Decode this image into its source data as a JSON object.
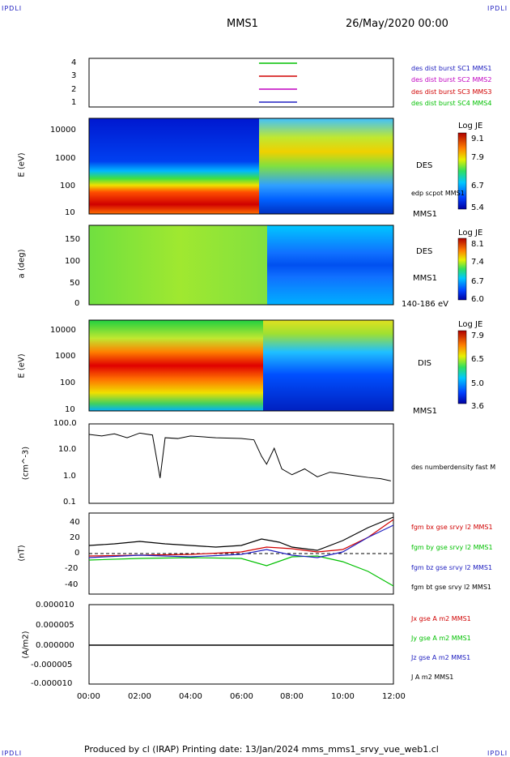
{
  "corner_label": "IPDLI",
  "header": {
    "spacecraft": "MMS1",
    "datetime": "26/May/2020 00:00"
  },
  "footer": "Produced by cl (IRAP)   Printing date: 13/Jan/2024   mms_mms1_srvy_vue_web1.cl",
  "time_axis": {
    "ticks": [
      "00:00",
      "02:00",
      "04:00",
      "06:00",
      "08:00",
      "10:00",
      "12:00"
    ],
    "range_hours": [
      0,
      12
    ]
  },
  "panels": {
    "burst": {
      "yticks": [
        "4",
        "3",
        "2",
        "1"
      ],
      "legend": [
        {
          "text": "des dist burst SC1 MMS1",
          "color": "#2020c0"
        },
        {
          "text": "des dist burst SC2 MMS2",
          "color": "#c000c0"
        },
        {
          "text": "des dist burst SC3 MMS3",
          "color": "#d00000"
        },
        {
          "text": "des dist burst SC4 MMS4",
          "color": "#00c000"
        }
      ]
    },
    "des_energy": {
      "ylabel": "E (eV)",
      "yticks": [
        "10000",
        "1000",
        "100",
        "10"
      ],
      "instrument": "DES",
      "overlay": "edp scpot MMS1",
      "sc": "MMS1",
      "colorbar": {
        "title": "Log JE",
        "ticks": [
          "9.1",
          "7.9",
          "6.7",
          "5.4"
        ]
      }
    },
    "des_pitch": {
      "ylabel": "a (deg)",
      "yticks": [
        "150",
        "100",
        "50",
        "0"
      ],
      "instrument": "DES",
      "sc": "MMS1",
      "energy_range": "140-186 eV",
      "colorbar": {
        "title": "Log JE",
        "ticks": [
          "8.1",
          "7.4",
          "6.7",
          "6.0"
        ]
      }
    },
    "dis_energy": {
      "ylabel": "E (eV)",
      "yticks": [
        "10000",
        "1000",
        "100",
        "10"
      ],
      "instrument": "DIS",
      "sc": "MMS1",
      "colorbar": {
        "title": "Log JE",
        "ticks": [
          "7.9",
          "6.5",
          "5.0",
          "3.6"
        ]
      }
    },
    "density": {
      "ylabel": "(cm^-3)",
      "yticks": [
        "100.0",
        "10.0",
        "1.0",
        "0.1"
      ],
      "legend": "des numberdensity fast M"
    },
    "bfield": {
      "ylabel": "(nT)",
      "yticks": [
        "40",
        "20",
        "0",
        "-20",
        "-40"
      ],
      "legend": [
        {
          "text": "fgm bx gse srvy l2 MMS1",
          "color": "#d00000"
        },
        {
          "text": "fgm by gse srvy l2 MMS1",
          "color": "#00c000"
        },
        {
          "text": "fgm bz gse srvy l2 MMS1",
          "color": "#2020c0"
        },
        {
          "text": "fgm bt gse srvy l2 MMS1",
          "color": "#000000"
        }
      ]
    },
    "current": {
      "ylabel": "(A/m2)",
      "yticks": [
        "0.000010",
        "0.000005",
        "0.000000",
        "-0.000005",
        "-0.000010"
      ],
      "legend": [
        {
          "text": "Jx gse A m2 MMS1",
          "color": "#d00000"
        },
        {
          "text": "Jy gse A m2 MMS1",
          "color": "#00c000"
        },
        {
          "text": "Jz gse A m2 MMS1",
          "color": "#2020c0"
        },
        {
          "text": "J A m2 MMS1",
          "color": "#000000"
        }
      ]
    }
  },
  "chart_data": {
    "type": "line",
    "density": {
      "x_hours": [
        0,
        0.5,
        1,
        1.5,
        2,
        2.5,
        2.8,
        3,
        3.5,
        4,
        5,
        6,
        6.5,
        6.8,
        7,
        7.3,
        7.6,
        8,
        8.5,
        9,
        9.5,
        10,
        10.5,
        11,
        11.5,
        11.9
      ],
      "y_cm3": [
        40,
        35,
        42,
        30,
        45,
        38,
        0.9,
        30,
        28,
        35,
        30,
        28,
        25,
        6,
        3,
        12,
        2,
        1.2,
        2,
        1.0,
        1.5,
        1.3,
        1.1,
        0.95,
        0.85,
        0.7
      ]
    },
    "bt": {
      "x_hours": [
        0,
        1,
        2,
        3,
        4,
        5,
        6,
        6.8,
        7.5,
        8,
        9,
        10,
        11,
        12
      ],
      "y_nT": [
        10,
        12,
        15,
        12,
        10,
        8,
        10,
        18,
        14,
        8,
        4,
        16,
        32,
        45
      ]
    },
    "bx": {
      "x_hours": [
        0,
        2,
        4,
        6,
        7,
        8,
        9,
        10,
        11,
        12
      ],
      "y_nT": [
        -3,
        -2,
        -1,
        2,
        8,
        6,
        2,
        5,
        20,
        42
      ]
    },
    "by": {
      "x_hours": [
        0,
        2,
        4,
        6,
        7,
        8,
        9,
        10,
        11,
        12
      ],
      "y_nT": [
        -8,
        -6,
        -5,
        -6,
        -15,
        -4,
        -3,
        -10,
        -22,
        -40
      ]
    },
    "bz": {
      "x_hours": [
        0,
        2,
        4,
        6,
        7,
        8,
        9,
        10,
        11,
        12
      ],
      "y_nT": [
        -5,
        -2,
        -4,
        -1,
        5,
        -2,
        -5,
        2,
        20,
        35
      ]
    },
    "burst_markers": [
      {
        "sc": 4,
        "x_hours": [
          6.7,
          8.2
        ],
        "color": "#00c000"
      },
      {
        "sc": 3,
        "x_hours": [
          6.7,
          8.2
        ],
        "color": "#d00000"
      },
      {
        "sc": 2,
        "x_hours": [
          6.7,
          8.2
        ],
        "color": "#c000c0"
      },
      {
        "sc": 1,
        "x_hours": [
          6.7,
          8.2
        ],
        "color": "#2020c0"
      }
    ]
  }
}
